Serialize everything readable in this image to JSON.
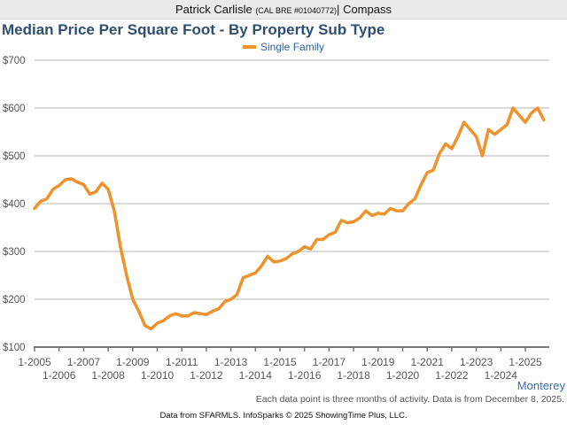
{
  "header": {
    "agent_name": "Patrick Carlisle",
    "license": "(CAL BRE #01040772)",
    "separator": "|",
    "brokerage": "Compass"
  },
  "chart_data": {
    "type": "line",
    "title": "Median Price Per Square Foot - By Property Sub Type",
    "xlabel": "",
    "ylabel": "",
    "ylim": [
      100,
      700
    ],
    "xlim": [
      2005,
      2026
    ],
    "grid": true,
    "legend_placement": "top-center",
    "y_ticks": [
      "$100",
      "$200",
      "$300",
      "$400",
      "$500",
      "$600",
      "$700"
    ],
    "y_tick_values": [
      100,
      200,
      300,
      400,
      500,
      600,
      700
    ],
    "x_ticks": [
      "1-2005",
      "1-2006",
      "1-2007",
      "1-2008",
      "1-2009",
      "1-2010",
      "1-2011",
      "1-2012",
      "1-2013",
      "1-2014",
      "1-2015",
      "1-2016",
      "1-2017",
      "1-2018",
      "1-2019",
      "1-2020",
      "1-2021",
      "1-2022",
      "1-2023",
      "1-2024",
      "1-2025"
    ],
    "x_tick_values": [
      2005,
      2006,
      2007,
      2008,
      2009,
      2010,
      2011,
      2012,
      2013,
      2014,
      2015,
      2016,
      2017,
      2018,
      2019,
      2020,
      2021,
      2022,
      2023,
      2024,
      2025
    ],
    "series": [
      {
        "name": "Single Family",
        "color": "#f0922b",
        "x": [
          2005.0,
          2005.25,
          2005.5,
          2005.75,
          2006.0,
          2006.25,
          2006.5,
          2006.75,
          2007.0,
          2007.25,
          2007.5,
          2007.75,
          2008.0,
          2008.25,
          2008.5,
          2008.75,
          2009.0,
          2009.25,
          2009.5,
          2009.75,
          2010.0,
          2010.25,
          2010.5,
          2010.75,
          2011.0,
          2011.25,
          2011.5,
          2011.75,
          2012.0,
          2012.25,
          2012.5,
          2012.75,
          2013.0,
          2013.25,
          2013.5,
          2013.75,
          2014.0,
          2014.25,
          2014.5,
          2014.75,
          2015.0,
          2015.25,
          2015.5,
          2015.75,
          2016.0,
          2016.25,
          2016.5,
          2016.75,
          2017.0,
          2017.25,
          2017.5,
          2017.75,
          2018.0,
          2018.25,
          2018.5,
          2018.75,
          2019.0,
          2019.25,
          2019.5,
          2019.75,
          2020.0,
          2020.25,
          2020.5,
          2020.75,
          2021.0,
          2021.25,
          2021.5,
          2021.75,
          2022.0,
          2022.25,
          2022.5,
          2022.75,
          2023.0,
          2023.25,
          2023.5,
          2023.75,
          2024.0,
          2024.25,
          2024.5,
          2024.75,
          2025.0,
          2025.25,
          2025.5,
          2025.75
        ],
        "values": [
          390,
          405,
          410,
          430,
          438,
          450,
          452,
          445,
          440,
          420,
          425,
          443,
          430,
          385,
          310,
          250,
          200,
          175,
          145,
          138,
          150,
          155,
          165,
          170,
          165,
          165,
          172,
          170,
          168,
          175,
          180,
          195,
          200,
          210,
          245,
          250,
          255,
          270,
          290,
          278,
          280,
          285,
          295,
          300,
          310,
          305,
          325,
          325,
          335,
          340,
          365,
          360,
          362,
          370,
          385,
          375,
          380,
          378,
          390,
          385,
          385,
          400,
          410,
          440,
          465,
          470,
          505,
          525,
          515,
          540,
          570,
          555,
          540,
          500,
          555,
          545,
          555,
          565,
          600,
          585,
          570,
          590,
          600,
          575
        ]
      }
    ]
  },
  "footer": {
    "region": "Monterey",
    "note": "Each data point is three months of activity. Data is from December 8, 2025.",
    "credit": "Data from SFARMLS. InfoSparks © 2025 ShowingTime Plus, LLC."
  }
}
